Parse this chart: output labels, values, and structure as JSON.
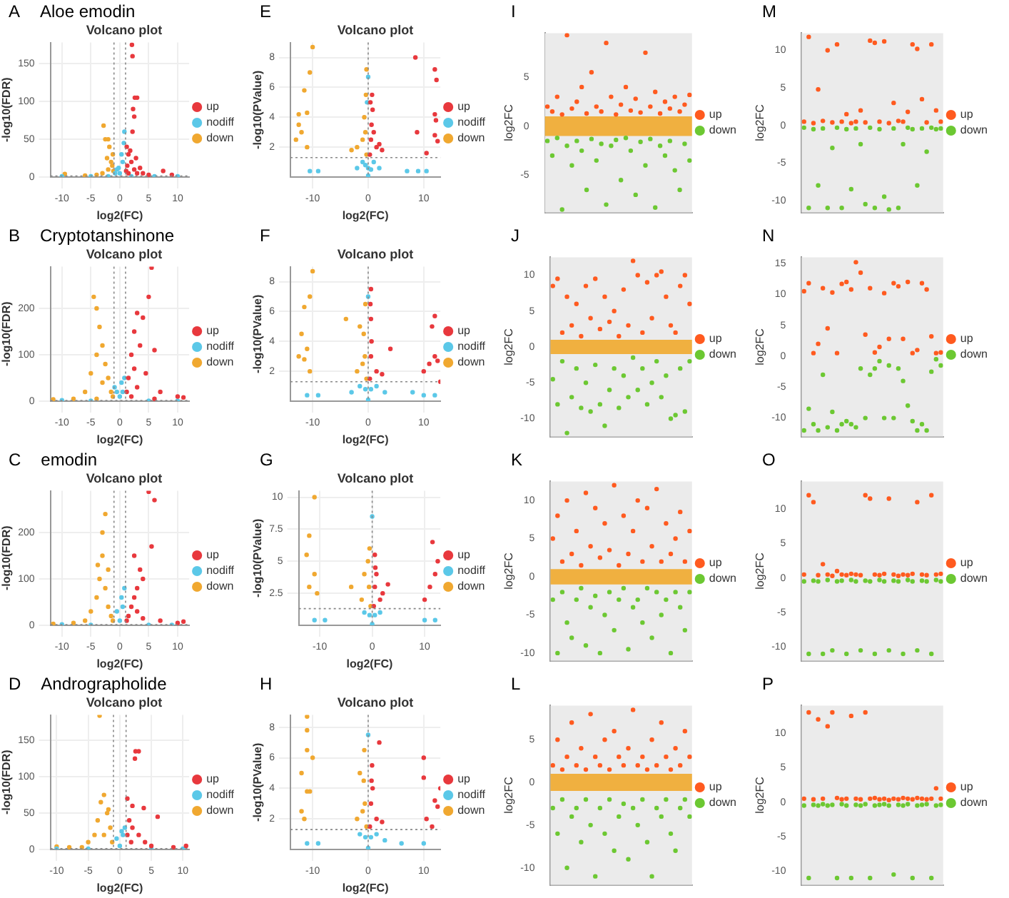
{
  "chart_data": [
    {
      "type": "scatter",
      "title": "Volcano plot",
      "xlabel": "log2(FC)",
      "ylabel": "-log10(FDR)",
      "annotations": [
        "A",
        "Aloe emodin"
      ],
      "xlim": [
        -12,
        12
      ],
      "xticks": [
        -10,
        -5,
        0,
        5,
        10
      ],
      "ylim": [
        0,
        178
      ],
      "yticks": [
        0,
        50,
        100,
        150
      ],
      "grid": true,
      "legend": "right",
      "marker": "circle",
      "ref_lines": [
        {
          "axis": "x",
          "value": -1,
          "color": "#888888",
          "line_style": "dotted"
        },
        {
          "axis": "x",
          "value": 1,
          "color": "#888888",
          "line_style": "dotted"
        },
        {
          "axis": "y",
          "value": 1.3,
          "color": "#888888",
          "line_style": "dotted"
        }
      ],
      "series": [
        {
          "name": "up",
          "color": "#e8383d",
          "x": [
            1.2,
            1.5,
            2,
            2.5,
            3,
            1.3,
            1.8,
            2.2,
            2.5,
            2.6,
            2.1,
            2.2,
            3,
            2.3,
            4,
            5,
            7.5,
            9,
            1.5,
            2.8,
            3.5,
            1.1
          ],
          "values": [
            40,
            30,
            20,
            10,
            5,
            15,
            35,
            60,
            80,
            105,
            175,
            160,
            105,
            90,
            5,
            3,
            8,
            3,
            5,
            25,
            12,
            8
          ]
        },
        {
          "name": "nodiff",
          "color": "#5bc8e8",
          "x": [
            -0.5,
            0,
            0.5,
            0.7,
            0.3,
            -0.8,
            -5,
            -10,
            6,
            10,
            -2,
            2,
            0.8,
            -0.2
          ],
          "values": [
            10,
            5,
            20,
            45,
            30,
            5,
            1,
            1,
            1,
            1,
            1,
            1,
            60,
            12
          ]
        },
        {
          "name": "down",
          "color": "#f0a830",
          "x": [
            -1.2,
            -1.5,
            -2,
            -2.5,
            -2,
            -2.8,
            -1.8,
            -3,
            -4,
            -1.3,
            -1.1,
            -9.5,
            -6,
            -2.2
          ],
          "values": [
            30,
            20,
            10,
            50,
            50,
            68,
            40,
            5,
            3,
            15,
            8,
            4,
            2,
            25
          ]
        }
      ]
    },
    {
      "type": "scatter",
      "title": "Volcano plot",
      "xlabel": "log2(FC)",
      "ylabel": "-log10(PValue)",
      "annotations": [
        "E"
      ],
      "xlim": [
        -14,
        13
      ],
      "xticks": [
        -10,
        0,
        10
      ],
      "ylim": [
        0,
        9
      ],
      "yticks": [
        2,
        4,
        6,
        8
      ],
      "grid": true,
      "legend": "right",
      "marker": "circle",
      "ref_lines": [
        {
          "axis": "x",
          "value": 0,
          "color": "#888888",
          "line_style": "dotted"
        },
        {
          "axis": "y",
          "value": 1.3,
          "color": "#888888",
          "line_style": "dotted"
        }
      ],
      "series": [
        {
          "name": "up",
          "color": "#e8383d",
          "x": [
            0.3,
            0.5,
            0.6,
            0.8,
            0.4,
            1,
            1.5,
            2,
            2.5,
            8.5,
            12,
            12.3,
            12,
            12.2,
            8.8,
            12,
            12.5,
            10.5,
            0.7
          ],
          "values": [
            1.5,
            2.5,
            3.5,
            4.5,
            5,
            3,
            2,
            2.2,
            1.8,
            8,
            7.2,
            6.5,
            4.2,
            3.8,
            3,
            2.8,
            2.4,
            1.6,
            5.5
          ]
        },
        {
          "name": "nodiff",
          "color": "#5bc8e8",
          "x": [
            0,
            0.5,
            -0.5,
            1,
            -1,
            2,
            -2,
            0,
            -10.5,
            -9,
            7,
            9,
            10.5,
            0,
            -0.2
          ],
          "values": [
            0.1,
            0.5,
            0.8,
            1,
            1,
            0.6,
            0.6,
            0.6,
            0.4,
            0.4,
            0.4,
            0.4,
            0.4,
            6.7,
            5
          ]
        },
        {
          "name": "down",
          "color": "#f0a830",
          "x": [
            -0.3,
            -0.5,
            -0.7,
            -1,
            -2,
            -3,
            -0.4,
            -0.3,
            -10,
            -10.5,
            -11.5,
            -12.5,
            -11,
            -12,
            -13,
            -11,
            -12.5
          ],
          "values": [
            1.5,
            3,
            4,
            2.5,
            2,
            1.8,
            5.5,
            7.2,
            8.7,
            7,
            5.8,
            4.2,
            4.3,
            3,
            2.5,
            2,
            3.5
          ]
        }
      ]
    },
    {
      "type": "scatter",
      "ylabel": "log2FC",
      "annotations": [
        "I"
      ],
      "categories": [
        null,
        null,
        null,
        null,
        null,
        null,
        null,
        null,
        null,
        null,
        null,
        null,
        null,
        null,
        null,
        null,
        null,
        null,
        null,
        null,
        null,
        null,
        null,
        null,
        null,
        null,
        null,
        null,
        null,
        null
      ],
      "ylim": [
        -8.8,
        9.5
      ],
      "yticks": [
        -5,
        0,
        5
      ],
      "tick_labels": "y",
      "grid": false,
      "legend": "right",
      "marker": "circle",
      "bands": [
        {
          "axis": "y",
          "from": -1,
          "to": 1,
          "color": "#f0b040"
        }
      ],
      "series": [
        {
          "name": "up",
          "color": "#ff5a1f",
          "values": [
            2,
            1.5,
            3,
            1.2,
            9.3,
            1.8,
            2.5,
            4,
            1.3,
            5.5,
            2,
            1.5,
            8.5,
            3,
            1.2,
            2.2,
            4,
            1.6,
            2.8,
            1.4,
            7.5,
            2,
            3.5,
            1.3,
            2.5,
            1.8,
            3,
            1.5,
            2.2,
            3.2
          ]
        },
        {
          "name": "down",
          "color": "#6cc832",
          "values": [
            -1.5,
            -3,
            -1.2,
            -8.5,
            -2,
            -4,
            -1.5,
            -2.5,
            -6.5,
            -1.3,
            -3.5,
            -1.8,
            -8,
            -2,
            -1.4,
            -5.5,
            -1.2,
            -2.5,
            -7,
            -1.6,
            -4,
            -1.3,
            -8.3,
            -2,
            -3,
            -1.5,
            -4.5,
            -6.5,
            -1.8,
            -3.5
          ]
        }
      ]
    },
    {
      "type": "scatter",
      "ylabel": "log2FC",
      "annotations": [
        "M"
      ],
      "categories": [
        null,
        null,
        null,
        null,
        null,
        null,
        null,
        null,
        null,
        null,
        null,
        null,
        null,
        null,
        null,
        null,
        null,
        null,
        null,
        null,
        null,
        null,
        null,
        null,
        null,
        null,
        null,
        null,
        null,
        null
      ],
      "ylim": [
        -11.6,
        12.3
      ],
      "yticks": [
        -10,
        -5,
        0,
        5,
        10
      ],
      "tick_labels": "y",
      "grid": false,
      "legend": "right",
      "marker": "circle",
      "series": [
        {
          "name": "up",
          "color": "#ff5a1f",
          "values": [
            0.5,
            11.8,
            0.3,
            4.8,
            0.6,
            10,
            0.4,
            10.8,
            0.5,
            1.5,
            0.3,
            0.5,
            2,
            0.4,
            11.3,
            11,
            0.5,
            11.2,
            0.3,
            3,
            0.6,
            0.5,
            1.8,
            10.8,
            10.2,
            3.5,
            0.4,
            10.8,
            2,
            0.5
          ]
        },
        {
          "name": "down",
          "color": "#6cc832",
          "values": [
            -0.3,
            -11,
            -0.5,
            -8,
            -0.4,
            -11,
            -3,
            -0.3,
            -11,
            -0.5,
            -8.5,
            -0.4,
            -2.5,
            -10.5,
            -0.3,
            -11,
            -0.5,
            -9.5,
            -11.2,
            -0.4,
            -11,
            -2.5,
            -0.3,
            -0.5,
            -8,
            -0.4,
            -3.5,
            -0.3,
            -0.5,
            -0.4
          ]
        }
      ]
    },
    {
      "type": "scatter",
      "title": "Volcano plot",
      "xlabel": "log2(FC)",
      "ylabel": "-log10(FDR)",
      "annotations": [
        "B",
        "Cryptotanshinone"
      ],
      "xlim": [
        -12,
        12
      ],
      "xticks": [
        -10,
        -5,
        0,
        5,
        10
      ],
      "ylim": [
        0,
        290
      ],
      "yticks": [
        0,
        100,
        200
      ],
      "grid": true,
      "legend": "right",
      "marker": "circle",
      "ref_lines": [
        {
          "axis": "x",
          "value": -1,
          "color": "#888888",
          "line_style": "dotted"
        },
        {
          "axis": "x",
          "value": 1,
          "color": "#888888",
          "line_style": "dotted"
        },
        {
          "axis": "y",
          "value": 1.3,
          "color": "#888888",
          "line_style": "dotted"
        }
      ],
      "series": [
        {
          "name": "up",
          "color": "#e8383d",
          "x": [
            1.5,
            2,
            2.5,
            3,
            4,
            3.5,
            2.5,
            5,
            5.5,
            6,
            4.5,
            7,
            10,
            11,
            1.2,
            3,
            2,
            6
          ],
          "values": [
            50,
            100,
            150,
            190,
            180,
            120,
            70,
            225,
            288,
            110,
            60,
            20,
            10,
            8,
            20,
            30,
            10,
            5
          ]
        },
        {
          "name": "nodiff",
          "color": "#5bc8e8",
          "x": [
            -0.5,
            0.5,
            0,
            0.8,
            -5,
            -10,
            5,
            10,
            -0.9,
            0.3
          ],
          "values": [
            20,
            20,
            10,
            50,
            1,
            2,
            1,
            1,
            30,
            40
          ]
        },
        {
          "name": "down",
          "color": "#f0a830",
          "x": [
            -4.5,
            -4,
            -3.5,
            -3,
            -4,
            -2.5,
            -2,
            -1.5,
            -5,
            -3,
            -6,
            -8,
            -11.5,
            -4,
            -1.2
          ],
          "values": [
            225,
            200,
            160,
            120,
            100,
            80,
            50,
            20,
            60,
            40,
            20,
            5,
            4,
            5,
            10
          ]
        }
      ]
    },
    {
      "type": "scatter",
      "title": "Volcano plot",
      "xlabel": "log2(FC)",
      "ylabel": "-log10(PValue)",
      "annotations": [
        "F"
      ],
      "xlim": [
        -14,
        13
      ],
      "xticks": [
        -10,
        0,
        10
      ],
      "ylim": [
        0,
        9
      ],
      "yticks": [
        2,
        4,
        6,
        8
      ],
      "grid": true,
      "legend": "right",
      "marker": "circle",
      "ref_lines": [
        {
          "axis": "x",
          "value": 0,
          "color": "#888888",
          "line_style": "dotted"
        },
        {
          "axis": "y",
          "value": 1.3,
          "color": "#888888",
          "line_style": "dotted"
        }
      ],
      "series": [
        {
          "name": "up",
          "color": "#e8383d",
          "x": [
            0.3,
            0.5,
            0.6,
            0.5,
            0.4,
            0.5,
            1.5,
            2.5,
            4,
            10,
            11,
            12,
            11.5,
            12,
            13,
            12.5
          ],
          "values": [
            1.5,
            3,
            4,
            5.5,
            6.5,
            7.5,
            2,
            1.8,
            3.5,
            2,
            2.5,
            3,
            5,
            5.7,
            1.3,
            2.7
          ]
        },
        {
          "name": "nodiff",
          "color": "#5bc8e8",
          "x": [
            0,
            0.5,
            -0.5,
            1.5,
            -1.5,
            3,
            -3,
            -11,
            -9,
            10,
            12,
            8,
            0
          ],
          "values": [
            0.1,
            0.8,
            0.8,
            1,
            1,
            0.6,
            0.6,
            0.4,
            0.4,
            0.4,
            0.4,
            0.6,
            7
          ]
        },
        {
          "name": "down",
          "color": "#f0a830",
          "x": [
            -0.3,
            -0.6,
            -0.8,
            -1,
            -2,
            -1.5,
            -0.5,
            -4,
            -10,
            -10.5,
            -11.5,
            -12,
            -11,
            -12.5,
            -10.5,
            -11.5
          ],
          "values": [
            1.5,
            3,
            4.5,
            2.5,
            2,
            5,
            6.5,
            5.5,
            8.7,
            7,
            6.3,
            4.5,
            3.5,
            3,
            2,
            2.8
          ]
        }
      ]
    },
    {
      "type": "scatter",
      "ylabel": "log2FC",
      "annotations": [
        "J"
      ],
      "categories": [
        null,
        null,
        null,
        null,
        null,
        null,
        null,
        null,
        null,
        null,
        null,
        null,
        null,
        null,
        null,
        null,
        null,
        null,
        null,
        null,
        null,
        null,
        null,
        null,
        null,
        null,
        null,
        null,
        null,
        null
      ],
      "ylim": [
        -12.5,
        12.5
      ],
      "yticks": [
        -10,
        -5,
        0,
        5,
        10
      ],
      "tick_labels": "y",
      "grid": false,
      "legend": "right",
      "marker": "circle",
      "bands": [
        {
          "axis": "y",
          "from": -1,
          "to": 1,
          "color": "#f0b040"
        }
      ],
      "series": [
        {
          "name": "up",
          "color": "#ff5a1f",
          "values": [
            8.5,
            9.5,
            2,
            7,
            3,
            6,
            1.5,
            8.5,
            4,
            9.5,
            2.5,
            7,
            3.5,
            5,
            1.5,
            8,
            3,
            12,
            10,
            2,
            9,
            4,
            10,
            10.5,
            7,
            3,
            2,
            8.5,
            10,
            6
          ]
        },
        {
          "name": "down",
          "color": "#6cc832",
          "values": [
            -4.5,
            -8,
            -2,
            -12,
            -7,
            -3,
            -8.5,
            -5,
            -9,
            -2.5,
            -8,
            -11,
            -6,
            -3,
            -8.5,
            -4,
            -7,
            -1.5,
            -6,
            -3,
            -8,
            -5,
            -2,
            -7,
            -4,
            -10,
            -9.5,
            -3,
            -9,
            -2
          ]
        }
      ]
    },
    {
      "type": "scatter",
      "ylabel": "log2FC",
      "annotations": [
        "N"
      ],
      "categories": [
        null,
        null,
        null,
        null,
        null,
        null,
        null,
        null,
        null,
        null,
        null,
        null,
        null,
        null,
        null,
        null,
        null,
        null,
        null,
        null,
        null,
        null,
        null,
        null,
        null,
        null,
        null,
        null,
        null,
        null
      ],
      "ylim": [
        -13,
        16
      ],
      "yticks": [
        -10,
        -5,
        0,
        5,
        10,
        15
      ],
      "tick_labels": "y",
      "grid": false,
      "legend": "right",
      "marker": "circle",
      "series": [
        {
          "name": "up",
          "color": "#ff5a1f",
          "values": [
            10.5,
            11.8,
            0.5,
            2,
            11,
            4.5,
            10.3,
            0.5,
            11.7,
            12,
            10.8,
            15.2,
            13.5,
            3.5,
            11,
            0.6,
            1.5,
            10.2,
            2.8,
            11.8,
            11.3,
            2.8,
            12,
            0.5,
            1,
            11.8,
            10.8,
            3.2,
            0.5,
            0.6
          ]
        },
        {
          "name": "down",
          "color": "#6cc832",
          "values": [
            -12,
            -8.5,
            -11,
            -12,
            -3,
            -11.5,
            -9,
            -12,
            -11,
            -10.5,
            -11,
            -11.5,
            -2,
            -10,
            -3,
            -2,
            -0.8,
            -10,
            -1.5,
            -10,
            -2,
            -4,
            -8,
            -10.5,
            -12,
            -11,
            -12,
            -2.5,
            -0.5,
            -1.5
          ]
        }
      ]
    },
    {
      "type": "scatter",
      "title": "Volcano plot",
      "xlabel": "log2(FC)",
      "ylabel": "-log10(FDR)",
      "annotations": [
        "C",
        "emodin"
      ],
      "xlim": [
        -12,
        12
      ],
      "xticks": [
        -10,
        -5,
        0,
        5,
        10
      ],
      "ylim": [
        0,
        290
      ],
      "yticks": [
        0,
        100,
        200
      ],
      "grid": true,
      "legend": "right",
      "marker": "circle",
      "ref_lines": [
        {
          "axis": "x",
          "value": -1,
          "color": "#888888",
          "line_style": "dotted"
        },
        {
          "axis": "x",
          "value": 1,
          "color": "#888888",
          "line_style": "dotted"
        },
        {
          "axis": "y",
          "value": 1.3,
          "color": "#888888",
          "line_style": "dotted"
        }
      ],
      "series": [
        {
          "name": "up",
          "color": "#e8383d",
          "x": [
            1.5,
            2,
            2.5,
            3,
            3.5,
            4,
            5,
            6,
            5.5,
            3,
            4,
            7,
            10,
            11,
            1.2,
            2.5
          ],
          "values": [
            20,
            40,
            60,
            80,
            120,
            100,
            288,
            270,
            170,
            30,
            15,
            10,
            5,
            8,
            10,
            150
          ]
        },
        {
          "name": "nodiff",
          "color": "#5bc8e8",
          "x": [
            -0.5,
            0.5,
            0,
            0.8,
            -5,
            -10,
            5,
            9,
            0.3
          ],
          "values": [
            30,
            40,
            10,
            80,
            1,
            2,
            1,
            1,
            60
          ]
        },
        {
          "name": "down",
          "color": "#f0a830",
          "x": [
            -2.5,
            -3,
            -3,
            -2,
            -3.5,
            -2.5,
            -4,
            -2,
            -1.5,
            -5,
            -6,
            -8,
            -11.5,
            -1.2,
            -3.8
          ],
          "values": [
            240,
            200,
            150,
            120,
            100,
            80,
            60,
            40,
            20,
            30,
            10,
            5,
            3,
            10,
            130
          ]
        }
      ]
    },
    {
      "type": "scatter",
      "title": "Volcano plot",
      "xlabel": "log2(FC)",
      "ylabel": "-log10(PValue)",
      "annotations": [
        "G"
      ],
      "xlim": [
        -14,
        13
      ],
      "xticks": [
        -10,
        0,
        10
      ],
      "ylim": [
        0,
        10.5
      ],
      "yticks": [
        2.5,
        5,
        7.5,
        10
      ],
      "grid": true,
      "legend": "right",
      "marker": "circle",
      "ref_lines": [
        {
          "axis": "x",
          "value": 0,
          "color": "#888888",
          "line_style": "dotted"
        },
        {
          "axis": "y",
          "value": 1.3,
          "color": "#888888",
          "line_style": "dotted"
        }
      ],
      "series": [
        {
          "name": "up",
          "color": "#e8383d",
          "x": [
            0.3,
            0.5,
            0.6,
            0.5,
            1.5,
            2,
            3,
            10,
            11,
            12,
            12.5,
            11.5,
            0.8
          ],
          "values": [
            1.5,
            3,
            4.5,
            5.5,
            2,
            2.5,
            3.2,
            2,
            3,
            4,
            5,
            6.5,
            4
          ]
        },
        {
          "name": "nodiff",
          "color": "#5bc8e8",
          "x": [
            0,
            0.5,
            -0.5,
            1.5,
            -1.5,
            -11,
            -9,
            10,
            12,
            0
          ],
          "values": [
            0.1,
            0.8,
            0.8,
            1,
            1,
            0.4,
            0.4,
            0.4,
            0.4,
            8.5
          ]
        },
        {
          "name": "down",
          "color": "#f0a830",
          "x": [
            -0.3,
            -0.6,
            -0.8,
            -1.5,
            -2,
            -0.5,
            -4,
            -11,
            -12,
            -12.5,
            -11,
            -12,
            -10.5
          ],
          "values": [
            1.5,
            3,
            5,
            4,
            2,
            6,
            3,
            10,
            7,
            5.5,
            4,
            3,
            2.5
          ]
        }
      ]
    },
    {
      "type": "scatter",
      "ylabel": "log2FC",
      "annotations": [
        "K"
      ],
      "categories": [
        null,
        null,
        null,
        null,
        null,
        null,
        null,
        null,
        null,
        null,
        null,
        null,
        null,
        null,
        null,
        null,
        null,
        null,
        null,
        null,
        null,
        null,
        null,
        null,
        null,
        null,
        null,
        null,
        null,
        null
      ],
      "ylim": [
        -11,
        12.5
      ],
      "yticks": [
        -10,
        -5,
        0,
        5,
        10
      ],
      "tick_labels": "y",
      "grid": false,
      "legend": "right",
      "marker": "circle",
      "bands": [
        {
          "axis": "y",
          "from": -1,
          "to": 1,
          "color": "#f0b040"
        }
      ],
      "series": [
        {
          "name": "up",
          "color": "#ff5a1f",
          "values": [
            5,
            8,
            2,
            10,
            3,
            6,
            1.5,
            11,
            4,
            9,
            2.5,
            7,
            3.5,
            12,
            1.5,
            8,
            3,
            6,
            10,
            2,
            9,
            4,
            11.5,
            2,
            7,
            3,
            5,
            8.5,
            2,
            6
          ]
        },
        {
          "name": "down",
          "color": "#6cc832",
          "values": [
            -3,
            -10,
            -2,
            -6,
            -8,
            -3,
            -1.5,
            -9,
            -4,
            -2.5,
            -10,
            -5,
            -2,
            -7,
            -3,
            -1.5,
            -9.5,
            -4,
            -3,
            -6,
            -1.5,
            -8,
            -2,
            -5,
            -3,
            -10,
            -2,
            -4,
            -7,
            -2
          ]
        }
      ]
    },
    {
      "type": "scatter",
      "ylabel": "log2FC",
      "annotations": [
        "O"
      ],
      "categories": [
        null,
        null,
        null,
        null,
        null,
        null,
        null,
        null,
        null,
        null,
        null,
        null,
        null,
        null,
        null,
        null,
        null,
        null,
        null,
        null,
        null,
        null,
        null,
        null,
        null,
        null,
        null,
        null,
        null,
        null
      ],
      "ylim": [
        -12,
        14
      ],
      "yticks": [
        -10,
        -5,
        0,
        5,
        10
      ],
      "tick_labels": "y",
      "grid": false,
      "legend": "right",
      "marker": "circle",
      "series": [
        {
          "name": "up",
          "color": "#ff5a1f",
          "values": [
            0.5,
            12,
            11,
            0.4,
            2,
            0.5,
            0.3,
            1,
            0.5,
            0.4,
            0.6,
            0.5,
            0.4,
            12,
            11.5,
            0.5,
            0.4,
            0.6,
            11.5,
            0.5,
            0.3,
            0.5,
            0.4,
            0.6,
            11,
            0.5,
            0.4,
            12,
            0.5,
            0.6
          ]
        },
        {
          "name": "down",
          "color": "#6cc832",
          "values": [
            -0.5,
            -11,
            -0.4,
            -0.5,
            -11,
            -0.3,
            -10.5,
            -0.5,
            -0.4,
            -11,
            -0.3,
            -0.5,
            -10.5,
            -0.4,
            -0.5,
            -11,
            -0.3,
            -0.5,
            -10.5,
            -0.4,
            -0.5,
            -11,
            -0.3,
            -0.5,
            -10.5,
            -0.4,
            -0.5,
            -11,
            -0.3,
            -0.5
          ]
        }
      ]
    },
    {
      "type": "scatter",
      "title": "Volcano plot",
      "xlabel": "log2(FC)",
      "ylabel": "-log10(FDR)",
      "annotations": [
        "D",
        "Andrographolide"
      ],
      "xlim": [
        -11,
        11
      ],
      "xticks": [
        -10,
        -5,
        0,
        5,
        10
      ],
      "ylim": [
        0,
        185
      ],
      "yticks": [
        0,
        50,
        100,
        150
      ],
      "grid": true,
      "legend": "right",
      "marker": "circle",
      "ref_lines": [
        {
          "axis": "x",
          "value": -1,
          "color": "#888888",
          "line_style": "dotted"
        },
        {
          "axis": "x",
          "value": 1,
          "color": "#888888",
          "line_style": "dotted"
        },
        {
          "axis": "y",
          "value": 1.3,
          "color": "#888888",
          "line_style": "dotted"
        }
      ],
      "series": [
        {
          "name": "up",
          "color": "#e8383d",
          "x": [
            1.2,
            1.5,
            2,
            1.2,
            2.5,
            3,
            2.4,
            2,
            3,
            4,
            5,
            6,
            8.5,
            10.5,
            3.8,
            1.8
          ],
          "values": [
            20,
            40,
            60,
            70,
            135,
            135,
            125,
            30,
            20,
            10,
            5,
            45,
            3,
            5,
            57,
            10
          ]
        },
        {
          "name": "nodiff",
          "color": "#5bc8e8",
          "x": [
            -0.5,
            0.5,
            0,
            0.8,
            -5,
            -10,
            5,
            10,
            0.3
          ],
          "values": [
            15,
            20,
            5,
            30,
            1,
            1,
            1,
            1,
            25
          ]
        },
        {
          "name": "down",
          "color": "#f0a830",
          "x": [
            -2.5,
            -3,
            -2,
            -1.5,
            -3.5,
            -4,
            -5,
            -2.5,
            -1.2,
            -6,
            -8,
            -10,
            -3.2,
            -1.8
          ],
          "values": [
            75,
            65,
            50,
            30,
            40,
            20,
            10,
            20,
            10,
            3,
            3,
            4,
            184,
            55
          ]
        }
      ]
    },
    {
      "type": "scatter",
      "title": "Volcano plot",
      "xlabel": "log2(FC)",
      "ylabel": "-log10(PValue)",
      "annotations": [
        "H"
      ],
      "xlim": [
        -14,
        13
      ],
      "xticks": [
        -10,
        0,
        10
      ],
      "ylim": [
        0,
        8.8
      ],
      "yticks": [
        2,
        4,
        6,
        8
      ],
      "grid": true,
      "legend": "right",
      "marker": "circle",
      "ref_lines": [
        {
          "axis": "x",
          "value": 0,
          "color": "#888888",
          "line_style": "dotted"
        },
        {
          "axis": "y",
          "value": 1.3,
          "color": "#888888",
          "line_style": "dotted"
        }
      ],
      "series": [
        {
          "name": "up",
          "color": "#e8383d",
          "x": [
            0.3,
            0.5,
            0.6,
            0.7,
            2,
            1.5,
            2.5,
            10,
            10,
            12,
            12.5,
            13,
            10.5,
            11.5,
            0.8
          ],
          "values": [
            1.5,
            3,
            4.5,
            5.5,
            7,
            2,
            1.8,
            6,
            4.7,
            3.2,
            2.8,
            4,
            2,
            1.5,
            4
          ]
        },
        {
          "name": "nodiff",
          "color": "#5bc8e8",
          "x": [
            0,
            0.5,
            -0.5,
            1.5,
            -1.5,
            3,
            -11,
            -9,
            10,
            6,
            0
          ],
          "values": [
            0.1,
            0.8,
            0.8,
            1,
            1,
            0.6,
            0.4,
            0.4,
            0.4,
            0.4,
            7.5
          ]
        },
        {
          "name": "down",
          "color": "#f0a830",
          "x": [
            -0.3,
            -0.6,
            -0.8,
            -1,
            -2,
            -1.5,
            -0.7,
            -11,
            -11,
            -11,
            -10,
            -12,
            -11,
            -12,
            -11.5,
            -10.5
          ],
          "values": [
            1.5,
            3,
            4.5,
            2.5,
            2,
            5,
            6.5,
            8.7,
            7.8,
            6.5,
            6,
            5,
            3.8,
            2.5,
            2,
            3.8
          ]
        }
      ]
    },
    {
      "type": "scatter",
      "ylabel": "log2FC",
      "annotations": [
        "L"
      ],
      "categories": [
        null,
        null,
        null,
        null,
        null,
        null,
        null,
        null,
        null,
        null,
        null,
        null,
        null,
        null,
        null,
        null,
        null,
        null,
        null,
        null,
        null,
        null,
        null,
        null,
        null,
        null,
        null,
        null,
        null,
        null
      ],
      "ylim": [
        -12,
        9
      ],
      "yticks": [
        -10,
        -5,
        0,
        5
      ],
      "tick_labels": "y",
      "grid": false,
      "legend": "right",
      "marker": "circle",
      "bands": [
        {
          "axis": "y",
          "from": -1,
          "to": 1,
          "color": "#f0b040"
        }
      ],
      "series": [
        {
          "name": "up",
          "color": "#ff5a1f",
          "values": [
            2,
            5,
            1.5,
            3,
            7,
            2,
            4,
            1.5,
            8,
            3,
            2,
            5,
            1.5,
            6,
            3,
            2,
            4,
            8.5,
            2,
            3,
            1.5,
            5,
            2,
            7,
            3,
            1.5,
            4,
            2,
            6,
            3
          ]
        },
        {
          "name": "down",
          "color": "#6cc832",
          "values": [
            -3,
            -6,
            -2,
            -10,
            -4,
            -3,
            -7,
            -2,
            -5,
            -11,
            -3,
            -6,
            -2,
            -8,
            -4,
            -2.5,
            -9,
            -3,
            -5,
            -2,
            -7,
            -11,
            -3,
            -4,
            -2,
            -6,
            -8,
            -3,
            -2,
            -4
          ]
        }
      ]
    },
    {
      "type": "scatter",
      "ylabel": "log2FC",
      "annotations": [
        "P"
      ],
      "categories": [
        null,
        null,
        null,
        null,
        null,
        null,
        null,
        null,
        null,
        null,
        null,
        null,
        null,
        null,
        null,
        null,
        null,
        null,
        null,
        null,
        null,
        null,
        null,
        null,
        null,
        null,
        null,
        null,
        null,
        null
      ],
      "ylim": [
        -12,
        14
      ],
      "yticks": [
        -10,
        -5,
        0,
        5,
        10
      ],
      "tick_labels": "y",
      "grid": false,
      "legend": "right",
      "marker": "circle",
      "series": [
        {
          "name": "up",
          "color": "#ff5a1f",
          "values": [
            0.5,
            13,
            0.4,
            12,
            0.5,
            11,
            13,
            0.6,
            0.4,
            0.5,
            12.5,
            0.5,
            0.4,
            13,
            0.5,
            0.6,
            0.4,
            0.5,
            0.3,
            0.5,
            0.4,
            0.6,
            0.5,
            0.4,
            0.6,
            0.5,
            0.4,
            0.5,
            2,
            0.5
          ]
        },
        {
          "name": "down",
          "color": "#6cc832",
          "values": [
            -0.5,
            -11,
            -0.4,
            -0.5,
            -0.3,
            -0.5,
            -0.4,
            -11,
            -0.3,
            -0.5,
            -11,
            -0.4,
            -0.5,
            -0.3,
            -11,
            -0.5,
            -0.4,
            -0.3,
            -0.5,
            -10.5,
            -0.4,
            -0.5,
            -0.3,
            -11,
            -0.5,
            -0.4,
            -0.3,
            -11,
            -0.5,
            -0.4
          ]
        }
      ]
    }
  ]
}
